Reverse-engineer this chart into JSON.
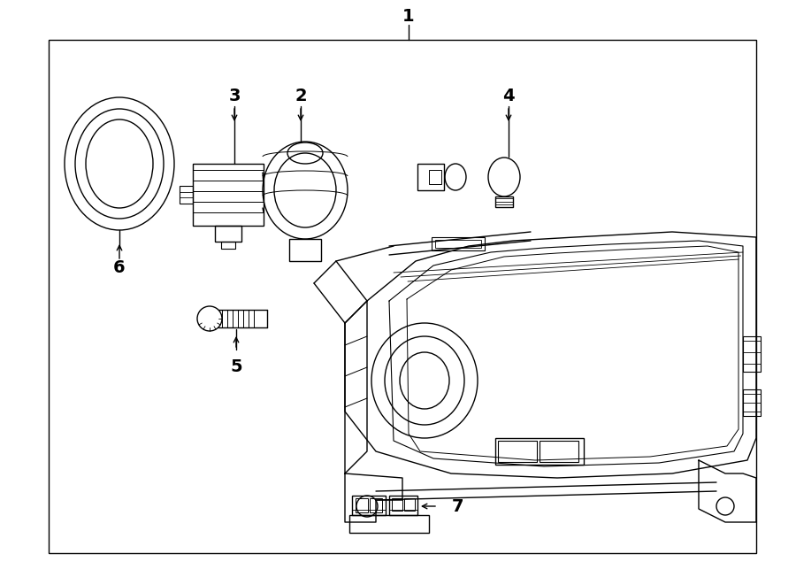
{
  "background_color": "#ffffff",
  "line_color": "#000000",
  "lw": 1.0,
  "figsize": [
    9.0,
    6.61
  ],
  "dpi": 100
}
